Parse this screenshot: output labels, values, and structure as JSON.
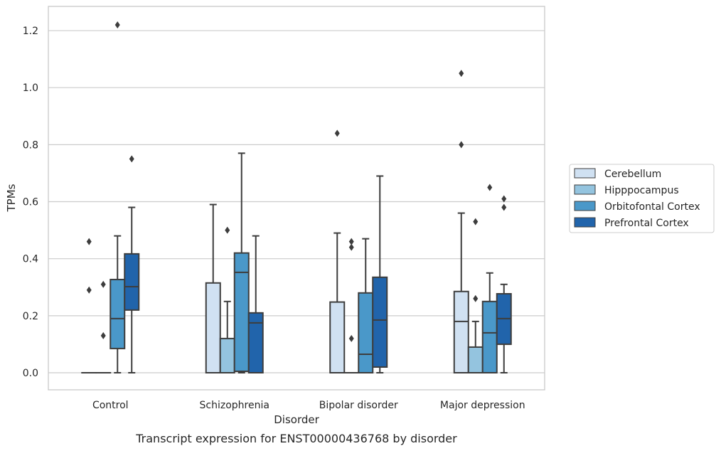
{
  "chart_data": {
    "type": "box",
    "caption": "Transcript expression for ENST00000436768 by disorder",
    "xlabel": "Disorder",
    "ylabel": "TPMs",
    "ylim": [
      -0.06,
      1.28
    ],
    "yticks": [
      "0.0",
      "0.2",
      "0.4",
      "0.6",
      "0.8",
      "1.0",
      "1.2"
    ],
    "grid": true,
    "legend_position": "right",
    "categories": [
      "Control",
      "Schizophrenia",
      "Bipolar disorder",
      "Major depression"
    ],
    "series": [
      {
        "name": "Cerebellum",
        "color": "#d0e1f2",
        "boxes": [
          {
            "min": 0,
            "q1": 0,
            "median": 0,
            "q3": 0,
            "max": 0,
            "outliers": [
              0.46,
              0.29
            ]
          },
          {
            "min": 0,
            "q1": 0,
            "median": 0,
            "q3": 0.315,
            "max": 0.59,
            "outliers": []
          },
          {
            "min": 0,
            "q1": 0,
            "median": 0,
            "q3": 0.248,
            "max": 0.49,
            "outliers": [
              0.84
            ]
          },
          {
            "min": 0,
            "q1": 0,
            "median": 0.18,
            "q3": 0.285,
            "max": 0.56,
            "outliers": [
              1.05,
              0.8
            ]
          }
        ]
      },
      {
        "name": "Hipppocampus",
        "color": "#94c4df",
        "boxes": [
          {
            "min": 0,
            "q1": 0,
            "median": 0,
            "q3": 0,
            "max": 0,
            "outliers": [
              0.31,
              0.13
            ]
          },
          {
            "min": 0,
            "q1": 0,
            "median": 0,
            "q3": 0.12,
            "max": 0.25,
            "outliers": [
              0.5
            ]
          },
          {
            "min": 0,
            "q1": 0,
            "median": 0,
            "q3": 0,
            "max": 0,
            "outliers": [
              0.46,
              0.44,
              0.12
            ]
          },
          {
            "min": 0,
            "q1": 0,
            "median": 0,
            "q3": 0.09,
            "max": 0.18,
            "outliers": [
              0.53,
              0.26
            ]
          }
        ]
      },
      {
        "name": "Orbitofontal Cortex",
        "color": "#4a98c9",
        "boxes": [
          {
            "min": 0,
            "q1": 0.085,
            "median": 0.19,
            "q3": 0.327,
            "max": 0.48,
            "outliers": [
              1.22
            ]
          },
          {
            "min": 0,
            "q1": 0.005,
            "median": 0.352,
            "q3": 0.42,
            "max": 0.77,
            "outliers": []
          },
          {
            "min": 0,
            "q1": 0,
            "median": 0.065,
            "q3": 0.28,
            "max": 0.47,
            "outliers": []
          },
          {
            "min": 0,
            "q1": 0,
            "median": 0.14,
            "q3": 0.25,
            "max": 0.35,
            "outliers": [
              0.65
            ]
          }
        ]
      },
      {
        "name": "Prefrontal Cortex",
        "color": "#2164ab",
        "boxes": [
          {
            "min": 0,
            "q1": 0.22,
            "median": 0.302,
            "q3": 0.417,
            "max": 0.58,
            "outliers": [
              0.75
            ]
          },
          {
            "min": 0,
            "q1": 0,
            "median": 0.175,
            "q3": 0.21,
            "max": 0.48,
            "outliers": []
          },
          {
            "min": 0,
            "q1": 0.02,
            "median": 0.185,
            "q3": 0.335,
            "max": 0.69,
            "outliers": []
          },
          {
            "min": 0,
            "q1": 0.1,
            "median": 0.19,
            "q3": 0.277,
            "max": 0.31,
            "outliers": [
              0.61,
              0.58
            ]
          }
        ]
      }
    ]
  }
}
